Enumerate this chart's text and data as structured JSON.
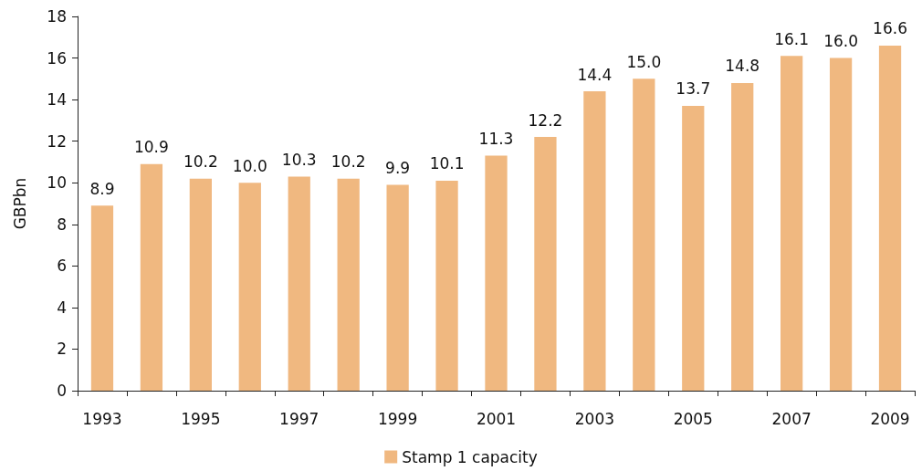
{
  "chart_data": {
    "type": "bar",
    "ylabel": "GBPbn",
    "categories": [
      "1993",
      null,
      "1995",
      null,
      "1997",
      null,
      "1999",
      null,
      "2001",
      null,
      "2003",
      null,
      "2005",
      null,
      "2007",
      null,
      "2009"
    ],
    "series": [
      {
        "name": "Stamp 1 capacity",
        "color": "#f0b880",
        "values": [
          8.9,
          10.9,
          10.2,
          10.0,
          10.3,
          10.2,
          9.9,
          10.1,
          11.3,
          12.2,
          14.4,
          15.0,
          13.7,
          14.8,
          16.1,
          16.0,
          16.6
        ],
        "value_labels": [
          "8.9",
          "10.9",
          "10.2",
          "10.0",
          "10.3",
          "10.2",
          "9.9",
          "10.1",
          "11.3",
          "12.2",
          "14.4",
          "15.0",
          "13.7",
          "14.8",
          "16.1",
          "16.0",
          "16.6"
        ]
      }
    ],
    "ylim": [
      0,
      18
    ],
    "yticks": [
      0,
      2,
      4,
      6,
      8,
      10,
      12,
      14,
      16,
      18
    ],
    "grid": false,
    "legend": "bottom"
  }
}
